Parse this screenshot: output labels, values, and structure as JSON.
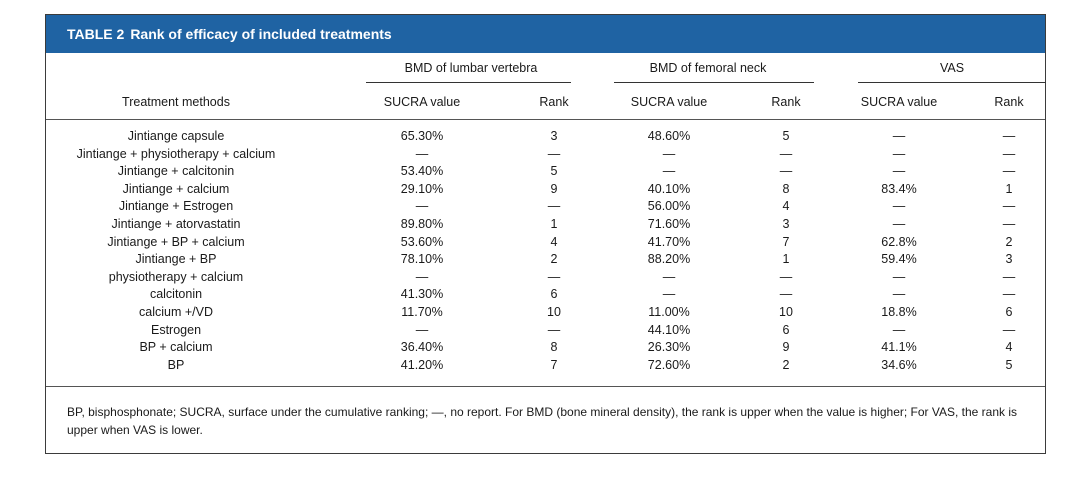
{
  "title": {
    "label": "TABLE 2",
    "text": "Rank of efficacy of included treatments"
  },
  "group_headers": {
    "lumbar": "BMD of lumbar vertebra",
    "femoral": "BMD of femoral neck",
    "vas": "VAS"
  },
  "col_headers": {
    "method": "Treatment methods",
    "lumbar_sucra": "SUCRA value",
    "lumbar_rank": "Rank",
    "femoral_sucra": "SUCRA value",
    "femoral_rank": "Rank",
    "vas_sucra": "SUCRA value",
    "vas_rank": "Rank"
  },
  "rows": [
    {
      "method": "Jintiange capsule",
      "l_sucra": "65.30%",
      "l_rank": "3",
      "f_sucra": "48.60%",
      "f_rank": "5",
      "v_sucra": "—",
      "v_rank": "—"
    },
    {
      "method": "Jintiange + physiotherapy + calcium",
      "l_sucra": "—",
      "l_rank": "—",
      "f_sucra": "—",
      "f_rank": "—",
      "v_sucra": "—",
      "v_rank": "—"
    },
    {
      "method": "Jintiange + calcitonin",
      "l_sucra": "53.40%",
      "l_rank": "5",
      "f_sucra": "—",
      "f_rank": "—",
      "v_sucra": "—",
      "v_rank": "—"
    },
    {
      "method": "Jintiange + calcium",
      "l_sucra": "29.10%",
      "l_rank": "9",
      "f_sucra": "40.10%",
      "f_rank": "8",
      "v_sucra": "83.4%",
      "v_rank": "1"
    },
    {
      "method": "Jintiange + Estrogen",
      "l_sucra": "—",
      "l_rank": "—",
      "f_sucra": "56.00%",
      "f_rank": "4",
      "v_sucra": "—",
      "v_rank": "—"
    },
    {
      "method": "Jintiange + atorvastatin",
      "l_sucra": "89.80%",
      "l_rank": "1",
      "f_sucra": "71.60%",
      "f_rank": "3",
      "v_sucra": "—",
      "v_rank": "—"
    },
    {
      "method": "Jintiange + BP + calcium",
      "l_sucra": "53.60%",
      "l_rank": "4",
      "f_sucra": "41.70%",
      "f_rank": "7",
      "v_sucra": "62.8%",
      "v_rank": "2"
    },
    {
      "method": "Jintiange + BP",
      "l_sucra": "78.10%",
      "l_rank": "2",
      "f_sucra": "88.20%",
      "f_rank": "1",
      "v_sucra": "59.4%",
      "v_rank": "3"
    },
    {
      "method": "physiotherapy + calcium",
      "l_sucra": "—",
      "l_rank": "—",
      "f_sucra": "—",
      "f_rank": "—",
      "v_sucra": "—",
      "v_rank": "—"
    },
    {
      "method": "calcitonin",
      "l_sucra": "41.30%",
      "l_rank": "6",
      "f_sucra": "—",
      "f_rank": "—",
      "v_sucra": "—",
      "v_rank": "—"
    },
    {
      "method": "calcium +/VD",
      "l_sucra": "11.70%",
      "l_rank": "10",
      "f_sucra": "11.00%",
      "f_rank": "10",
      "v_sucra": "18.8%",
      "v_rank": "6"
    },
    {
      "method": "Estrogen",
      "l_sucra": "—",
      "l_rank": "—",
      "f_sucra": "44.10%",
      "f_rank": "6",
      "v_sucra": "—",
      "v_rank": "—"
    },
    {
      "method": "BP + calcium",
      "l_sucra": "36.40%",
      "l_rank": "8",
      "f_sucra": "26.30%",
      "f_rank": "9",
      "v_sucra": "41.1%",
      "v_rank": "4"
    },
    {
      "method": "BP",
      "l_sucra": "41.20%",
      "l_rank": "7",
      "f_sucra": "72.60%",
      "f_rank": "2",
      "v_sucra": "34.6%",
      "v_rank": "5"
    }
  ],
  "footnote": "BP, bisphosphonate; SUCRA, surface under the cumulative ranking; —, no report. For BMD (bone mineral density), the rank is upper when the value is higher; For VAS, the rank is upper when VAS is lower."
}
